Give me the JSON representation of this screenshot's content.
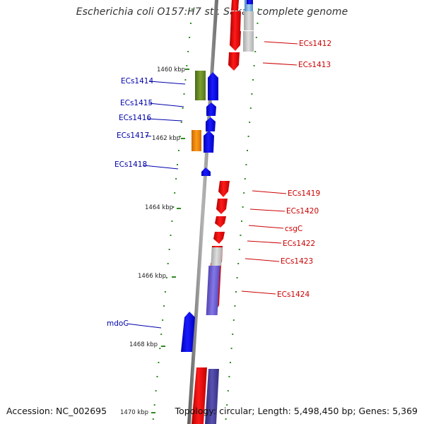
{
  "header": {
    "title": "Escherichia coli O157:H7 str. Sakai, complete genome"
  },
  "footer": {
    "accession": "Accession: NC_002695",
    "summary": "Topology: circular; Length: 5,498,450 bp; Genes: 5,369"
  },
  "colors": {
    "forward_strand": "#ff0000",
    "reverse_strand": "#0000ff",
    "forward_label": "#cc0000",
    "reverse_label": "#0000aa",
    "backbone": "#8c8c8c",
    "tick_marks": "#2e8b22",
    "cog_green": "#6b8e23",
    "cog_orange": "#ff8c00",
    "cog_grey": "#c0c0c0",
    "cog_purple": "#6a5acd",
    "cog_light_blue": "#6fa8dc"
  },
  "map": {
    "scale_labels": [
      "1460 kbp",
      "1462 kbp",
      "1464 kbp",
      "1466 kbp",
      "1468 kbp",
      "1470 kbp"
    ],
    "reverse_genes": [
      {
        "name": "ECs1414"
      },
      {
        "name": "ECs1415"
      },
      {
        "name": "ECs1416"
      },
      {
        "name": "ECs1417"
      },
      {
        "name": "ECs1418"
      },
      {
        "name": "mdoC"
      }
    ],
    "forward_genes": [
      {
        "name": "ECs1412"
      },
      {
        "name": "ECs1413"
      },
      {
        "name": "ECs1419"
      },
      {
        "name": "ECs1420"
      },
      {
        "name": "csgC"
      },
      {
        "name": "ECs1422"
      },
      {
        "name": "ECs1423"
      },
      {
        "name": "ECs1424"
      }
    ]
  }
}
